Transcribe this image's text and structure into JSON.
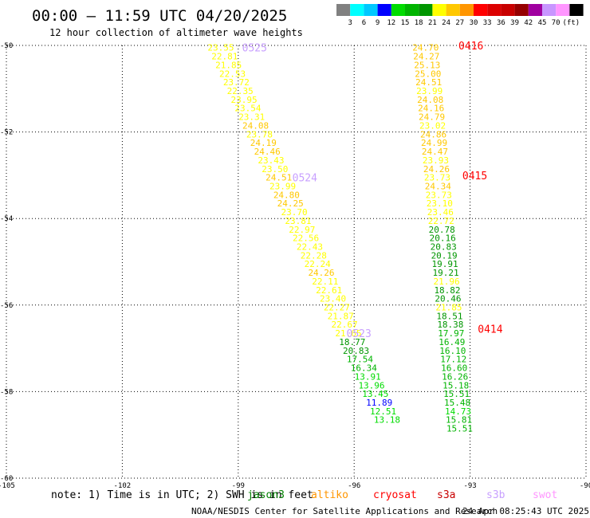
{
  "header": {
    "title": "00:00 – 11:59 UTC 04/20/2025",
    "subtitle": "12 hour collection of altimeter wave heights"
  },
  "scale": {
    "labels": [
      "3",
      "6",
      "9",
      "12",
      "15",
      "18",
      "21",
      "24",
      "27",
      "30",
      "33",
      "36",
      "39",
      "42",
      "45",
      "70"
    ],
    "unit": "(ft)",
    "colors": [
      "#808080",
      "#00ffff",
      "#00c8ff",
      "#0000ff",
      "#00dc00",
      "#00b400",
      "#009600",
      "#ffff00",
      "#ffc800",
      "#ff9600",
      "#ff0000",
      "#dc0000",
      "#c80000",
      "#960000",
      "#a000a0",
      "#c896ff",
      "#ff96ff",
      "#000000"
    ]
  },
  "note": {
    "text": "note: 1) Time is in UTC; 2) SWH is in feet"
  },
  "missions": [
    {
      "name": "jason3",
      "color": "#008000"
    },
    {
      "name": "altiko",
      "color": "#ff9600"
    },
    {
      "name": "cryosat",
      "color": "#ff0000"
    },
    {
      "name": "s3a",
      "color": "#c80000"
    },
    {
      "name": "s3b",
      "color": "#c8a0ff"
    },
    {
      "name": "swot",
      "color": "#ff96ff"
    }
  ],
  "footer": {
    "credit": "NOAA/NESDIS Center for Satellite Applications and Research",
    "timestamp": "24 Apr 08:25:43 UTC 2025"
  },
  "chart_data": {
    "type": "scatter",
    "title": "00:00 – 11:59 UTC 04/20/2025",
    "xlim": [
      -105,
      -90
    ],
    "ylim": [
      -60,
      -50
    ],
    "x_ticks": [
      "-105",
      "-102",
      "-99",
      "-96",
      "-93",
      "-90"
    ],
    "y_ticks": [
      "-50",
      "-52",
      "-54",
      "-56",
      "-58",
      "-60"
    ],
    "grid": true,
    "color_thresholds_ft": [
      3,
      6,
      9,
      12,
      15,
      18,
      21,
      24,
      27,
      30,
      33,
      36,
      39,
      42,
      45,
      70
    ],
    "pass_labels": [
      {
        "text": "0525",
        "x": -98.9,
        "y": -50.05,
        "color": "#c8a0ff"
      },
      {
        "text": "0524",
        "x": -97.6,
        "y": -53.05,
        "color": "#c8a0ff"
      },
      {
        "text": "0523",
        "x": -96.2,
        "y": -56.65,
        "color": "#c8a0ff"
      },
      {
        "text": "0416",
        "x": -93.3,
        "y": -50.0,
        "color": "#ff0000"
      },
      {
        "text": "0415",
        "x": -93.2,
        "y": -53.0,
        "color": "#ff0000"
      },
      {
        "text": "0414",
        "x": -92.8,
        "y": -56.55,
        "color": "#ff0000"
      }
    ],
    "series": [
      {
        "name": "0525",
        "points": [
          {
            "x": -99.45,
            "y": -50.05,
            "v": 23.55
          },
          {
            "x": -99.35,
            "y": -50.25,
            "v": 22.81
          },
          {
            "x": -99.25,
            "y": -50.45,
            "v": 21.85
          },
          {
            "x": -99.15,
            "y": -50.65,
            "v": 22.53
          },
          {
            "x": -99.05,
            "y": -50.85,
            "v": 23.72
          },
          {
            "x": -98.95,
            "y": -51.05,
            "v": 22.35
          },
          {
            "x": -98.85,
            "y": -51.25,
            "v": 23.95
          },
          {
            "x": -98.75,
            "y": -51.45,
            "v": 23.54
          },
          {
            "x": -98.65,
            "y": -51.65,
            "v": 23.31
          },
          {
            "x": -98.55,
            "y": -51.85,
            "v": 24.08
          },
          {
            "x": -98.45,
            "y": -52.05,
            "v": 23.78
          },
          {
            "x": -98.35,
            "y": -52.25,
            "v": 24.19
          },
          {
            "x": -98.25,
            "y": -52.45,
            "v": 24.46
          },
          {
            "x": -98.15,
            "y": -52.65,
            "v": 23.43
          },
          {
            "x": -98.05,
            "y": -52.85,
            "v": 23.5
          },
          {
            "x": -97.95,
            "y": -53.05,
            "v": 24.51
          },
          {
            "x": -97.85,
            "y": -53.25,
            "v": 23.99
          },
          {
            "x": -97.75,
            "y": -53.45,
            "v": 24.8
          },
          {
            "x": -97.65,
            "y": -53.65,
            "v": 24.25
          },
          {
            "x": -97.55,
            "y": -53.85,
            "v": 23.7
          },
          {
            "x": -97.45,
            "y": -54.05,
            "v": 23.81
          },
          {
            "x": -97.35,
            "y": -54.25,
            "v": 22.97
          },
          {
            "x": -97.25,
            "y": -54.45,
            "v": 22.56
          },
          {
            "x": -97.15,
            "y": -54.65,
            "v": 22.43
          },
          {
            "x": -97.05,
            "y": -54.85,
            "v": 22.28
          },
          {
            "x": -96.95,
            "y": -55.05,
            "v": 22.24
          },
          {
            "x": -96.85,
            "y": -55.25,
            "v": 24.26
          },
          {
            "x": -96.75,
            "y": -55.45,
            "v": 22.11
          },
          {
            "x": -96.65,
            "y": -55.65,
            "v": 22.61
          },
          {
            "x": -96.55,
            "y": -55.85,
            "v": 23.4
          },
          {
            "x": -96.45,
            "y": -56.05,
            "v": 22.27
          },
          {
            "x": -96.35,
            "y": -56.25,
            "v": 21.87
          },
          {
            "x": -96.25,
            "y": -56.45,
            "v": 22.67
          },
          {
            "x": -96.15,
            "y": -56.65,
            "v": 21.65
          },
          {
            "x": -96.05,
            "y": -56.85,
            "v": 18.77
          },
          {
            "x": -95.95,
            "y": -57.05,
            "v": 20.83
          },
          {
            "x": -95.85,
            "y": -57.25,
            "v": 17.54
          },
          {
            "x": -95.75,
            "y": -57.45,
            "v": 16.34
          },
          {
            "x": -95.65,
            "y": -57.65,
            "v": 13.91
          },
          {
            "x": -95.55,
            "y": -57.85,
            "v": 13.96
          },
          {
            "x": -95.45,
            "y": -58.05,
            "v": 13.45
          },
          {
            "x": -95.35,
            "y": -58.25,
            "v": 11.89
          },
          {
            "x": -95.25,
            "y": -58.45,
            "v": 12.51
          },
          {
            "x": -95.15,
            "y": -58.65,
            "v": 13.18
          }
        ]
      },
      {
        "name": "0416",
        "points": [
          {
            "x": -94.15,
            "y": -50.05,
            "v": 24.7
          },
          {
            "x": -94.13,
            "y": -50.25,
            "v": 24.27
          },
          {
            "x": -94.11,
            "y": -50.45,
            "v": 25.13
          },
          {
            "x": -94.09,
            "y": -50.65,
            "v": 25.0
          },
          {
            "x": -94.07,
            "y": -50.85,
            "v": 24.51
          },
          {
            "x": -94.05,
            "y": -51.05,
            "v": 23.99
          },
          {
            "x": -94.03,
            "y": -51.25,
            "v": 24.08
          },
          {
            "x": -94.01,
            "y": -51.45,
            "v": 24.16
          },
          {
            "x": -93.99,
            "y": -51.65,
            "v": 24.79
          },
          {
            "x": -93.97,
            "y": -51.85,
            "v": 23.02
          },
          {
            "x": -93.95,
            "y": -52.05,
            "v": 24.86
          },
          {
            "x": -93.93,
            "y": -52.25,
            "v": 24.99
          },
          {
            "x": -93.91,
            "y": -52.45,
            "v": 24.47
          },
          {
            "x": -93.89,
            "y": -52.65,
            "v": 23.93
          },
          {
            "x": -93.87,
            "y": -52.85,
            "v": 24.26
          },
          {
            "x": -93.85,
            "y": -53.05,
            "v": 23.73
          },
          {
            "x": -93.83,
            "y": -53.25,
            "v": 24.34
          },
          {
            "x": -93.81,
            "y": -53.45,
            "v": 23.73
          },
          {
            "x": -93.79,
            "y": -53.65,
            "v": 23.1
          },
          {
            "x": -93.77,
            "y": -53.85,
            "v": 23.46
          },
          {
            "x": -93.75,
            "y": -54.05,
            "v": 22.72
          },
          {
            "x": -93.73,
            "y": -54.25,
            "v": 20.78
          },
          {
            "x": -93.71,
            "y": -54.45,
            "v": 20.16
          },
          {
            "x": -93.69,
            "y": -54.65,
            "v": 20.83
          },
          {
            "x": -93.67,
            "y": -54.85,
            "v": 20.19
          },
          {
            "x": -93.65,
            "y": -55.05,
            "v": 19.91
          },
          {
            "x": -93.63,
            "y": -55.25,
            "v": 19.21
          },
          {
            "x": -93.61,
            "y": -55.45,
            "v": 21.96
          },
          {
            "x": -93.59,
            "y": -55.65,
            "v": 18.82
          },
          {
            "x": -93.57,
            "y": -55.85,
            "v": 20.46
          },
          {
            "x": -93.55,
            "y": -56.05,
            "v": 21.85
          },
          {
            "x": -93.53,
            "y": -56.25,
            "v": 18.51
          },
          {
            "x": -93.51,
            "y": -56.45,
            "v": 18.38
          },
          {
            "x": -93.49,
            "y": -56.65,
            "v": 17.97
          },
          {
            "x": -93.47,
            "y": -56.85,
            "v": 16.49
          },
          {
            "x": -93.45,
            "y": -57.05,
            "v": 16.1
          },
          {
            "x": -93.43,
            "y": -57.25,
            "v": 17.12
          },
          {
            "x": -93.41,
            "y": -57.45,
            "v": 16.6
          },
          {
            "x": -93.39,
            "y": -57.65,
            "v": 16.26
          },
          {
            "x": -93.37,
            "y": -57.85,
            "v": 15.18
          },
          {
            "x": -93.35,
            "y": -58.05,
            "v": 15.51
          },
          {
            "x": -93.33,
            "y": -58.25,
            "v": 15.48
          },
          {
            "x": -93.31,
            "y": -58.45,
            "v": 14.73
          },
          {
            "x": -93.29,
            "y": -58.65,
            "v": 15.81
          },
          {
            "x": -93.27,
            "y": -58.85,
            "v": 15.51
          }
        ]
      }
    ]
  }
}
